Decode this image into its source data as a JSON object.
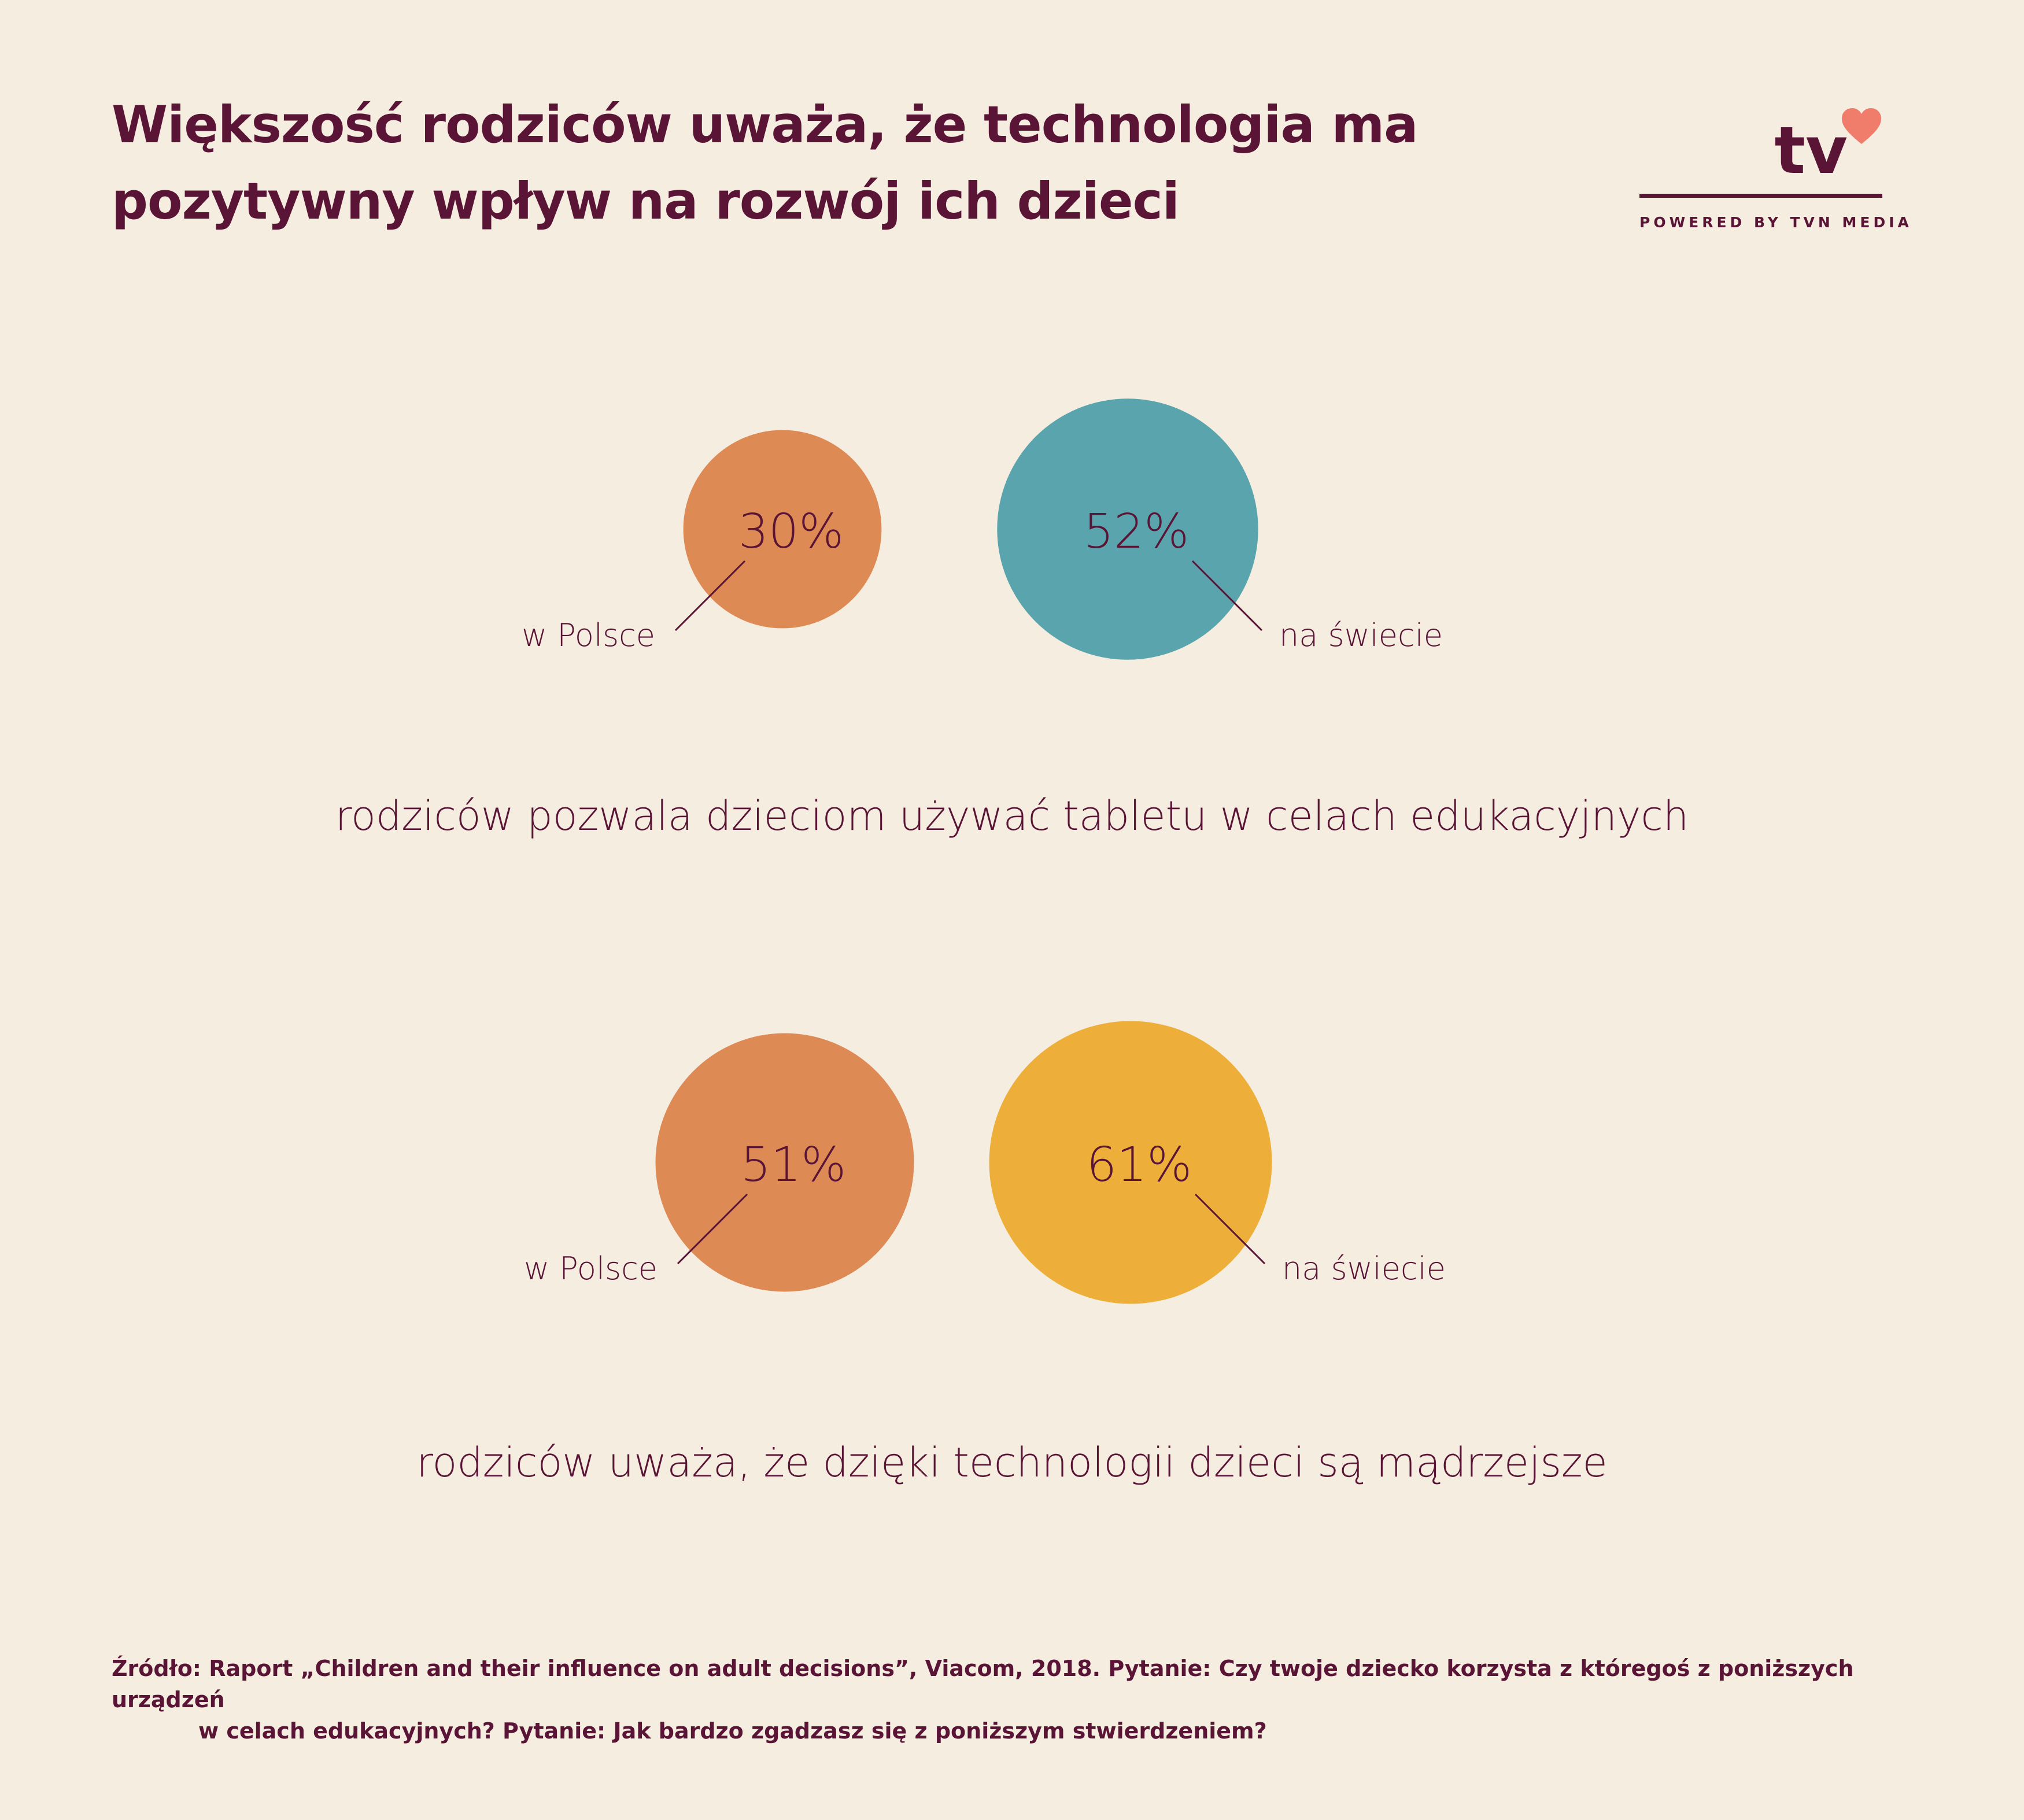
{
  "title": {
    "line1": "Większość rodziców uważa, że technologia ma",
    "line2": "pozytywny wpływ na rozwój ich dzieci"
  },
  "logo": {
    "text": "tv",
    "tagline": "POWERED BY TVN MEDIA",
    "heart_color": "#f07d6b"
  },
  "chart_data": [
    {
      "type": "bubble",
      "caption": "rodziców pozwala dzieciom używać tabletu w celach edukacyjnych",
      "bubbles": [
        {
          "label": "w Polsce",
          "value": 30,
          "value_label": "30%",
          "color": "#de8a55"
        },
        {
          "label": "na świecie",
          "value": 52,
          "value_label": "52%",
          "color": "#5aa5ad"
        }
      ]
    },
    {
      "type": "bubble",
      "caption": "rodziców uważa, że dzięki technologii dzieci są mądrzejsze",
      "bubbles": [
        {
          "label": "w Polsce",
          "value": 51,
          "value_label": "51%",
          "color": "#de8a55"
        },
        {
          "label": "na świecie",
          "value": 61,
          "value_label": "61%",
          "color": "#edaf3a"
        }
      ]
    }
  ],
  "source": {
    "line1": "Źródło: Raport „Children and their influence on adult decisions”, Viacom, 2018. Pytanie: Czy twoje dziecko korzysta z któregoś z poniższych urządzeń",
    "line2": "w celach edukacyjnych? Pytanie: Jak bardzo zgadzasz się z poniższym stwierdzeniem?"
  }
}
